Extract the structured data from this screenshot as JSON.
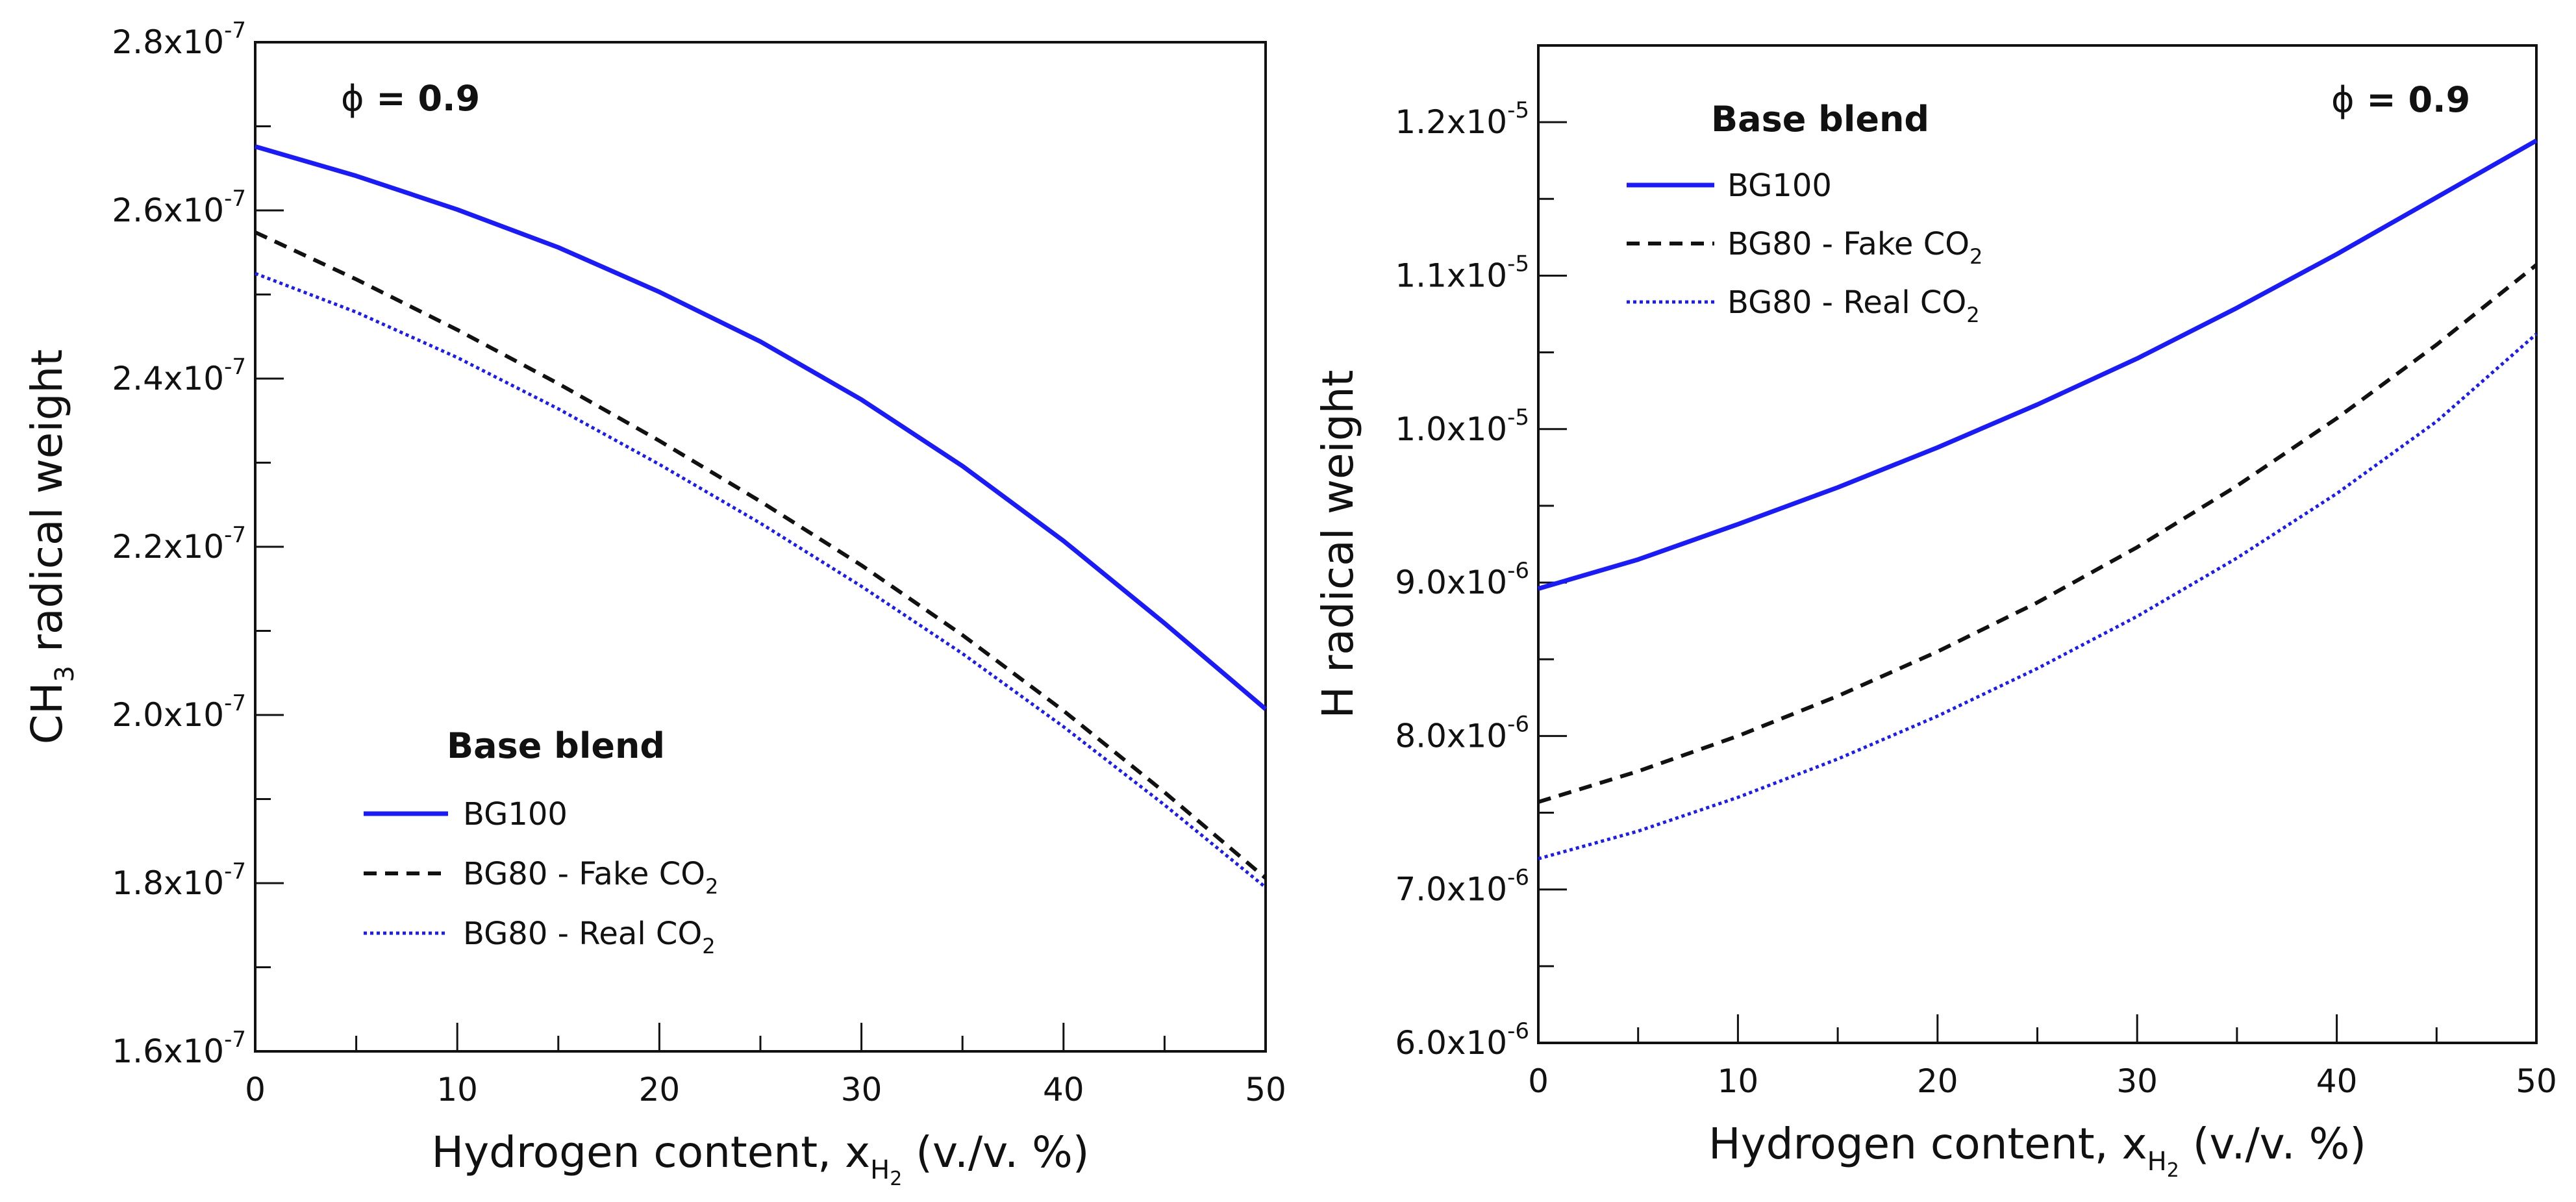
{
  "chart_data": [
    {
      "type": "line",
      "panel": "left",
      "ylabel": {
        "base": "CH",
        "sub": "3",
        "rest": " radical weight"
      },
      "xlabel": {
        "base": "Hydrogen content, x",
        "sub": "H",
        "subsub": "2",
        "rest": " (v./v. %)"
      },
      "annotation": {
        "symbol": "ϕ",
        "equals": " = ",
        "value": "0.9"
      },
      "legend_title": "Base blend",
      "legend_position": "lower-center",
      "xlim": [
        0,
        50
      ],
      "ylim": [
        1.6e-07,
        2.8e-07
      ],
      "x_ticks": [
        0,
        10,
        20,
        30,
        40,
        50
      ],
      "x_tick_labels": [
        "0",
        "10",
        "20",
        "30",
        "40",
        "50"
      ],
      "x_minor_step": 5,
      "y_ticks": [
        1.6e-07,
        1.8e-07,
        2e-07,
        2.2e-07,
        2.4e-07,
        2.6e-07,
        2.8e-07
      ],
      "y_tick_labels": [
        {
          "mant": "1.6x10",
          "exp": "-7"
        },
        {
          "mant": "1.8x10",
          "exp": "-7"
        },
        {
          "mant": "2.0x10",
          "exp": "-7"
        },
        {
          "mant": "2.2x10",
          "exp": "-7"
        },
        {
          "mant": "2.4x10",
          "exp": "-7"
        },
        {
          "mant": "2.6x10",
          "exp": "-7"
        },
        {
          "mant": "2.8x10",
          "exp": "-7"
        }
      ],
      "y_minor_step": 1e-08,
      "x": [
        0,
        5,
        10,
        15,
        20,
        25,
        30,
        35,
        40,
        45,
        50
      ],
      "series": [
        {
          "key": "bg100",
          "name": "BG100",
          "sub": "",
          "color": "#1a1aff",
          "style": "solid",
          "values": [
            2.676e-07,
            2.641e-07,
            2.601e-07,
            2.556e-07,
            2.503e-07,
            2.444e-07,
            2.375e-07,
            2.296e-07,
            2.207e-07,
            2.109e-07,
            2.007e-07
          ]
        },
        {
          "key": "bg80fake",
          "name": "BG80 - Fake CO",
          "sub": "2",
          "color": "#111111",
          "style": "dashed",
          "values": [
            2.574e-07,
            2.518e-07,
            2.458e-07,
            2.394e-07,
            2.326e-07,
            2.254e-07,
            2.178e-07,
            2.095e-07,
            2.005e-07,
            1.908e-07,
            1.806e-07
          ]
        },
        {
          "key": "bg80real",
          "name": "BG80 - Real CO",
          "sub": "2",
          "color": "#1a1aff",
          "style": "dotted",
          "values": [
            2.525e-07,
            2.479e-07,
            2.425e-07,
            2.364e-07,
            2.298e-07,
            2.228e-07,
            2.153e-07,
            2.073e-07,
            1.986e-07,
            1.893e-07,
            1.795e-07
          ]
        }
      ]
    },
    {
      "type": "line",
      "panel": "right",
      "ylabel": {
        "base": "H",
        "sub": "",
        "rest": " radical weight"
      },
      "xlabel": {
        "base": "Hydrogen content, x",
        "sub": "H",
        "subsub": "2",
        "rest": " (v./v. %)"
      },
      "annotation": {
        "symbol": "ϕ",
        "equals": " = ",
        "value": "0.9"
      },
      "legend_title": "Base blend",
      "legend_position": "upper-left",
      "xlim": [
        0,
        50
      ],
      "ylim": [
        6e-06,
        1.25e-05
      ],
      "x_ticks": [
        0,
        10,
        20,
        30,
        40,
        50
      ],
      "x_tick_labels": [
        "0",
        "10",
        "20",
        "30",
        "40",
        "50"
      ],
      "x_minor_step": 5,
      "y_ticks": [
        6e-06,
        7e-06,
        8e-06,
        9e-06,
        1e-05,
        1.1e-05,
        1.2e-05
      ],
      "y_tick_labels": [
        {
          "mant": "6.0x10",
          "exp": "-6"
        },
        {
          "mant": "7.0x10",
          "exp": "-6"
        },
        {
          "mant": "8.0x10",
          "exp": "-6"
        },
        {
          "mant": "9.0x10",
          "exp": "-6"
        },
        {
          "mant": "1.0x10",
          "exp": "-5"
        },
        {
          "mant": "1.1x10",
          "exp": "-5"
        },
        {
          "mant": "1.2x10",
          "exp": "-5"
        }
      ],
      "y_minor_step": 5e-07,
      "x": [
        0,
        5,
        10,
        15,
        20,
        25,
        30,
        35,
        40,
        45,
        50
      ],
      "series": [
        {
          "key": "bg100",
          "name": "BG100",
          "sub": "",
          "color": "#1a1aff",
          "style": "solid",
          "values": [
            8.96e-06,
            9.15e-06,
            9.38e-06,
            9.62e-06,
            9.88e-06,
            1.016e-05,
            1.046e-05,
            1.079e-05,
            1.114e-05,
            1.151e-05,
            1.188e-05
          ]
        },
        {
          "key": "bg80fake",
          "name": "BG80 - Fake CO",
          "sub": "2",
          "color": "#111111",
          "style": "dashed",
          "values": [
            7.57e-06,
            7.77e-06,
            8e-06,
            8.26e-06,
            8.55e-06,
            8.87e-06,
            9.23e-06,
            9.63e-06,
            1.007e-05,
            1.055e-05,
            1.107e-05
          ]
        },
        {
          "key": "bg80real",
          "name": "BG80 - Real CO",
          "sub": "2",
          "color": "#1a1aff",
          "style": "dotted",
          "values": [
            7.2e-06,
            7.38e-06,
            7.6e-06,
            7.85e-06,
            8.13e-06,
            8.44e-06,
            8.78e-06,
            9.16e-06,
            9.58e-06,
            1.005e-05,
            1.062e-05
          ]
        }
      ]
    }
  ]
}
